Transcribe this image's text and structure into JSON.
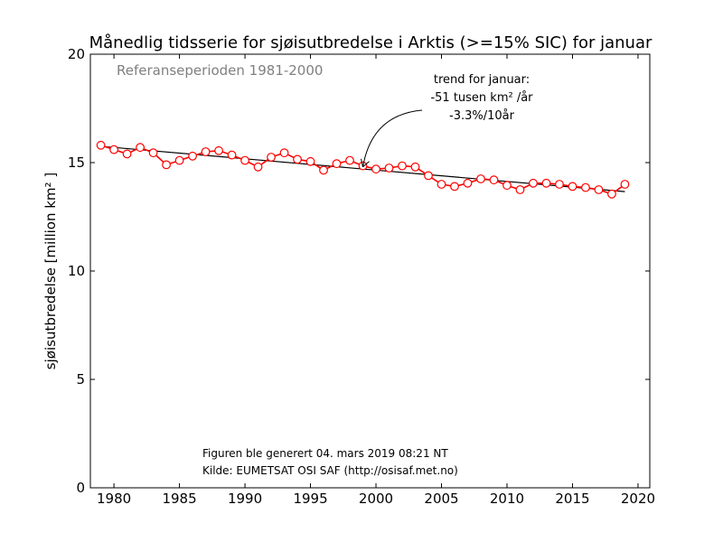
{
  "chart_data": {
    "type": "line",
    "title": "Månedlig tidsserie for sjøisutbredelse i Arktis (>=15% SIC) for januar",
    "xlabel": "",
    "ylabel": "sjøisutbredelse [million km² ]",
    "xlim": [
      1978.2,
      2020.9
    ],
    "ylim": [
      0,
      20
    ],
    "xticks": [
      1980,
      1985,
      1990,
      1995,
      2000,
      2005,
      2010,
      2015,
      2020
    ],
    "yticks": [
      0,
      5,
      10,
      15,
      20
    ],
    "grid": false,
    "series": [
      {
        "name": "",
        "color": "#ff0000",
        "marker": "open-circle",
        "x": [
          1979,
          1980,
          1981,
          1982,
          1983,
          1984,
          1985,
          1986,
          1987,
          1988,
          1989,
          1990,
          1991,
          1992,
          1993,
          1994,
          1995,
          1996,
          1997,
          1998,
          1999,
          2000,
          2001,
          2002,
          2003,
          2004,
          2005,
          2006,
          2007,
          2008,
          2009,
          2010,
          2011,
          2012,
          2013,
          2014,
          2015,
          2016,
          2017,
          2018,
          2019
        ],
        "y": [
          15.8,
          15.6,
          15.4,
          15.7,
          15.45,
          14.9,
          15.1,
          15.3,
          15.5,
          15.55,
          15.35,
          15.1,
          14.8,
          15.25,
          15.45,
          15.15,
          15.05,
          14.65,
          14.95,
          15.1,
          14.85,
          14.7,
          14.75,
          14.85,
          14.8,
          14.4,
          14.0,
          13.9,
          14.05,
          14.25,
          14.2,
          13.95,
          13.75,
          14.05,
          14.05,
          14.0,
          13.9,
          13.85,
          13.75,
          13.55,
          14.0
        ]
      }
    ],
    "trend": {
      "color": "#000000",
      "x": [
        1979,
        2019
      ],
      "y": [
        15.75,
        13.66
      ]
    },
    "annotations": {
      "reference": "Referanseperioden 1981-2000",
      "trend_lines": [
        "trend for januar:",
        "-51 tusen km² /år",
        "-3.3%/10år"
      ],
      "trend_arrow_target": {
        "x": 1999,
        "y": 14.8
      },
      "generated": "Figuren ble generert 04. mars 2019 08:21 NT",
      "source": "Kilde: EUMETSAT OSI SAF (http://osisaf.met.no)"
    }
  }
}
